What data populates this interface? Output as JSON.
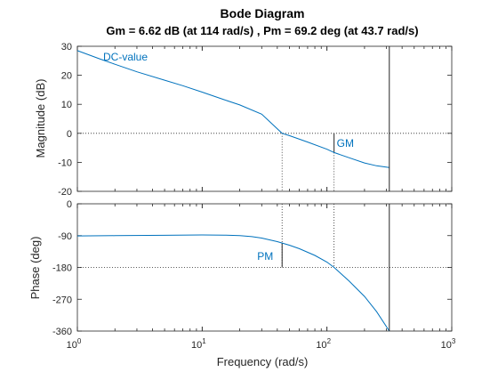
{
  "chart_data": {
    "type": "line",
    "title": "Bode Diagram",
    "subtitle": "Gm = 6.62 dB (at 114 rad/s) ,  Pm = 69.2 deg (at 43.7 rad/s)",
    "xlabel": "Frequency  (rad/s)",
    "x_scale": "log",
    "xlim": [
      1,
      1000
    ],
    "x_ticks": [
      {
        "base": "10",
        "exp": "0"
      },
      {
        "base": "10",
        "exp": "1"
      },
      {
        "base": "10",
        "exp": "2"
      },
      {
        "base": "10",
        "exp": "3"
      }
    ],
    "x_tick_values": [
      1,
      10,
      100,
      1000
    ],
    "grid": false,
    "line_color": "#0072bd",
    "end_frequency": 316,
    "magnitude": {
      "ylabel": "Magnitude (dB)",
      "ylim": [
        -20,
        30
      ],
      "y_ticks": [
        "30",
        "20",
        "10",
        "0",
        "-10",
        "-20"
      ],
      "y_tick_values": [
        30,
        20,
        10,
        0,
        -10,
        -20
      ],
      "x": [
        1,
        1.5,
        2,
        3,
        5,
        7,
        10,
        15,
        20,
        30,
        43.7,
        50,
        70,
        100,
        114,
        150,
        200,
        250,
        316
      ],
      "values": [
        28.5,
        25.7,
        23.8,
        21.2,
        18.3,
        16.4,
        14.2,
        11.6,
        9.8,
        6.6,
        0,
        -0.8,
        -3.0,
        -5.5,
        -6.62,
        -8.4,
        -10.2,
        -11.2,
        -11.8
      ]
    },
    "phase": {
      "ylabel": "Phase (deg)",
      "ylim": [
        -360,
        0
      ],
      "y_ticks": [
        "0",
        "-90",
        "-180",
        "-270",
        "-360"
      ],
      "y_tick_values": [
        0,
        -90,
        -180,
        -270,
        -360
      ],
      "x": [
        1,
        2,
        5,
        10,
        15,
        20,
        25,
        30,
        40,
        50,
        60,
        80,
        100,
        114,
        150,
        200,
        250,
        316
      ],
      "values": [
        -91,
        -90,
        -89,
        -88,
        -88.5,
        -90,
        -93,
        -97,
        -107,
        -117,
        -127,
        -146,
        -165,
        -180,
        -218,
        -262,
        -305,
        -360
      ]
    },
    "annotations": {
      "dc_label": "DC-value",
      "gm_label": "GM",
      "pm_label": "PM",
      "gm_frequency": 114,
      "gm_value_db": -6.62,
      "pm_frequency": 43.7,
      "pm_phase": -110.8
    }
  }
}
